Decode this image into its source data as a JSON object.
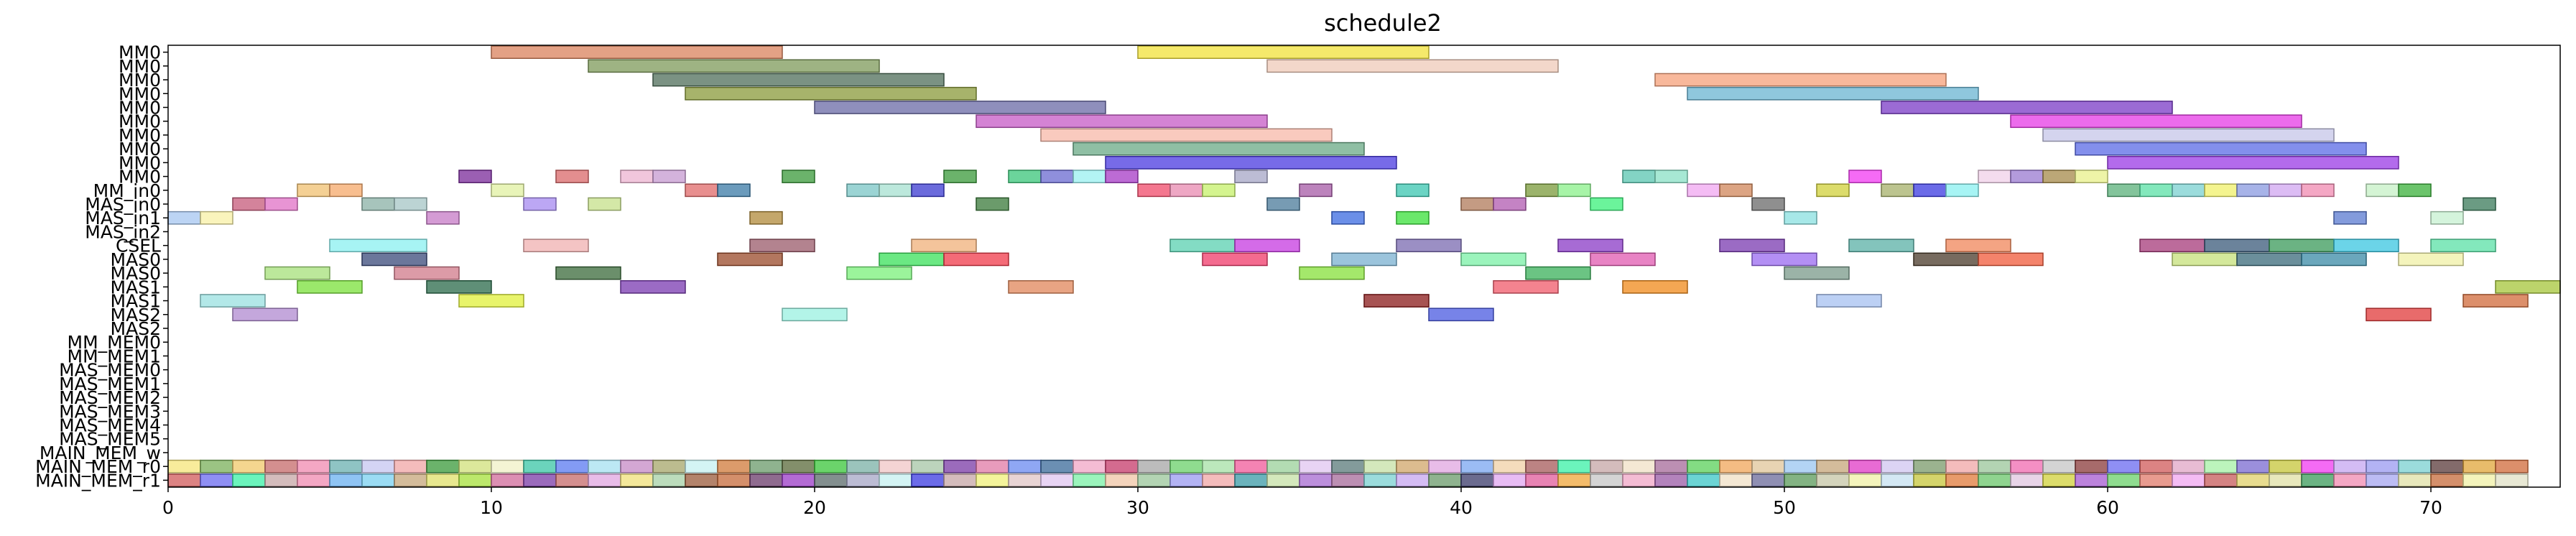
{
  "chart_data": {
    "type": "gantt",
    "title": "schedule2",
    "xlabel": "",
    "ylabel": "",
    "xlim": [
      0,
      74
    ],
    "xticks": [
      0,
      10,
      20,
      30,
      40,
      50,
      60,
      70
    ],
    "grid": false,
    "rows": [
      "MM0",
      "MM0",
      "MM0",
      "MM0",
      "MM0",
      "MM0",
      "MM0",
      "MM0",
      "MM0",
      "MM0",
      "MM_in0",
      "MAS_in0",
      "MAS_in1",
      "MAS_in2",
      "CSEL",
      "MAS0",
      "MAS0",
      "MAS1",
      "MAS1",
      "MAS2",
      "MAS2",
      "MM_MEM0",
      "MM_MEM1",
      "MAS_MEM0",
      "MAS_MEM1",
      "MAS_MEM2",
      "MAS_MEM3",
      "MAS_MEM4",
      "MAS_MEM5",
      "MAIN_MEM_w",
      "MAIN_MEM_r0",
      "MAIN_MEM_r1"
    ],
    "bars": [
      {
        "row": 0,
        "start": 10,
        "end": 19,
        "color": "#d9825c"
      },
      {
        "row": 0,
        "start": 30,
        "end": 39,
        "color": "#f2e23a"
      },
      {
        "row": 1,
        "start": 13,
        "end": 22,
        "color": "#7d9a5a"
      },
      {
        "row": 1,
        "start": 34,
        "end": 43,
        "color": "#efc9b8"
      },
      {
        "row": 2,
        "start": 15,
        "end": 24,
        "color": "#4f6e5a"
      },
      {
        "row": 2,
        "start": 46,
        "end": 55,
        "color": "#f5a07a"
      },
      {
        "row": 3,
        "start": 16,
        "end": 25,
        "color": "#8a9a3a"
      },
      {
        "row": 3,
        "start": 47,
        "end": 56,
        "color": "#6ab4d2"
      },
      {
        "row": 4,
        "start": 20,
        "end": 29,
        "color": "#6a6aa6"
      },
      {
        "row": 4,
        "start": 53,
        "end": 62,
        "color": "#7a3ac6"
      },
      {
        "row": 5,
        "start": 25,
        "end": 34,
        "color": "#c65ac6"
      },
      {
        "row": 5,
        "start": 57,
        "end": 66,
        "color": "#e53ae5"
      },
      {
        "row": 6,
        "start": 27,
        "end": 36,
        "color": "#f7b8a8"
      },
      {
        "row": 6,
        "start": 58,
        "end": 67,
        "color": "#c6c6e8"
      },
      {
        "row": 7,
        "start": 28,
        "end": 37,
        "color": "#6aaa86"
      },
      {
        "row": 7,
        "start": 59,
        "end": 68,
        "color": "#5a6ae6"
      },
      {
        "row": 8,
        "start": 29,
        "end": 38,
        "color": "#4a3ae0"
      },
      {
        "row": 8,
        "start": 60,
        "end": 69,
        "color": "#9a3ae6"
      },
      {
        "row": 9,
        "start": 9,
        "end": 10,
        "color": "#7a2a9a"
      },
      {
        "row": 9,
        "start": 12,
        "end": 13,
        "color": "#d9686a"
      },
      {
        "row": 9,
        "start": 14,
        "end": 15,
        "color": "#ecb3d0"
      },
      {
        "row": 9,
        "start": 15,
        "end": 16,
        "color": "#c69ad0"
      },
      {
        "row": 9,
        "start": 19,
        "end": 20,
        "color": "#3a9a3a"
      },
      {
        "row": 9,
        "start": 24,
        "end": 25,
        "color": "#3a9a3a"
      },
      {
        "row": 9,
        "start": 26,
        "end": 27,
        "color": "#3ac67a"
      },
      {
        "row": 9,
        "start": 27,
        "end": 28,
        "color": "#6a6ad0"
      },
      {
        "row": 9,
        "start": 28,
        "end": 29,
        "color": "#9af0f0"
      },
      {
        "row": 9,
        "start": 29,
        "end": 30,
        "color": "#a63ac6"
      },
      {
        "row": 9,
        "start": 33,
        "end": 34,
        "color": "#a6a6c6"
      },
      {
        "row": 9,
        "start": 45,
        "end": 46,
        "color": "#5ac6b0"
      },
      {
        "row": 9,
        "start": 46,
        "end": 47,
        "color": "#8ae0c6"
      },
      {
        "row": 9,
        "start": 52,
        "end": 53,
        "color": "#f23af2"
      },
      {
        "row": 9,
        "start": 56,
        "end": 57,
        "color": "#f0d0e8"
      },
      {
        "row": 9,
        "start": 57,
        "end": 58,
        "color": "#9a7ad0"
      },
      {
        "row": 9,
        "start": 58,
        "end": 59,
        "color": "#a68a4a"
      },
      {
        "row": 9,
        "start": 59,
        "end": 60,
        "color": "#e8f08a"
      },
      {
        "row": 10,
        "start": 4,
        "end": 5,
        "color": "#f0c070"
      },
      {
        "row": 10,
        "start": 5,
        "end": 6,
        "color": "#f5a86a"
      },
      {
        "row": 10,
        "start": 10,
        "end": 11,
        "color": "#e0f0a0"
      },
      {
        "row": 10,
        "start": 16,
        "end": 17,
        "color": "#e06a6a"
      },
      {
        "row": 10,
        "start": 17,
        "end": 18,
        "color": "#3a7aa6"
      },
      {
        "row": 10,
        "start": 21,
        "end": 22,
        "color": "#7ac6c6"
      },
      {
        "row": 10,
        "start": 22,
        "end": 23,
        "color": "#a6e0d0"
      },
      {
        "row": 10,
        "start": 23,
        "end": 24,
        "color": "#3a3ad0"
      },
      {
        "row": 10,
        "start": 30,
        "end": 31,
        "color": "#f04a6a"
      },
      {
        "row": 10,
        "start": 31,
        "end": 32,
        "color": "#e88ab0"
      },
      {
        "row": 10,
        "start": 32,
        "end": 33,
        "color": "#c6f06a"
      },
      {
        "row": 10,
        "start": 35,
        "end": 36,
        "color": "#a65aa6"
      },
      {
        "row": 10,
        "start": 38,
        "end": 39,
        "color": "#3ac6b0"
      },
      {
        "row": 10,
        "start": 42,
        "end": 43,
        "color": "#7a9a3a"
      },
      {
        "row": 10,
        "start": 43,
        "end": 44,
        "color": "#8af08a"
      },
      {
        "row": 10,
        "start": 47,
        "end": 48,
        "color": "#f0a6f0"
      },
      {
        "row": 10,
        "start": 48,
        "end": 49,
        "color": "#d0865a"
      },
      {
        "row": 10,
        "start": 51,
        "end": 52,
        "color": "#d0d03a"
      },
      {
        "row": 10,
        "start": 53,
        "end": 54,
        "color": "#a6b06a"
      },
      {
        "row": 10,
        "start": 54,
        "end": 55,
        "color": "#3a3ae0"
      },
      {
        "row": 10,
        "start": 55,
        "end": 56,
        "color": "#8af0f0"
      },
      {
        "row": 10,
        "start": 60,
        "end": 61,
        "color": "#5ab07a"
      },
      {
        "row": 10,
        "start": 61,
        "end": 62,
        "color": "#5ae0a6"
      },
      {
        "row": 10,
        "start": 62,
        "end": 63,
        "color": "#7ad0d0"
      },
      {
        "row": 10,
        "start": 63,
        "end": 64,
        "color": "#f0f06a"
      },
      {
        "row": 10,
        "start": 64,
        "end": 65,
        "color": "#8a9ae0"
      },
      {
        "row": 10,
        "start": 65,
        "end": 66,
        "color": "#d0a6f0"
      },
      {
        "row": 10,
        "start": 66,
        "end": 67,
        "color": "#f08ab0"
      },
      {
        "row": 10,
        "start": 68,
        "end": 69,
        "color": "#c6f0c6"
      },
      {
        "row": 10,
        "start": 69,
        "end": 70,
        "color": "#3ab03a"
      },
      {
        "row": 11,
        "start": 2,
        "end": 3,
        "color": "#c65a7a"
      },
      {
        "row": 11,
        "start": 3,
        "end": 4,
        "color": "#e070c6"
      },
      {
        "row": 11,
        "start": 6,
        "end": 7,
        "color": "#8ab0a6"
      },
      {
        "row": 11,
        "start": 7,
        "end": 8,
        "color": "#a6c6c6"
      },
      {
        "row": 11,
        "start": 11,
        "end": 12,
        "color": "#a68af0"
      },
      {
        "row": 11,
        "start": 13,
        "end": 14,
        "color": "#c6e08a"
      },
      {
        "row": 11,
        "start": 25,
        "end": 26,
        "color": "#3a7a3a"
      },
      {
        "row": 11,
        "start": 34,
        "end": 35,
        "color": "#4a7a9a"
      },
      {
        "row": 11,
        "start": 40,
        "end": 41,
        "color": "#b07a5a"
      },
      {
        "row": 11,
        "start": 41,
        "end": 42,
        "color": "#b05ab0"
      },
      {
        "row": 11,
        "start": 44,
        "end": 45,
        "color": "#3af07a"
      },
      {
        "row": 11,
        "start": 49,
        "end": 50,
        "color": "#6a6a6a"
      },
      {
        "row": 11,
        "start": 71,
        "end": 72,
        "color": "#3a7a5a"
      },
      {
        "row": 12,
        "start": 0,
        "end": 1,
        "color": "#a6c6f0"
      },
      {
        "row": 12,
        "start": 1,
        "end": 2,
        "color": "#f8f0a6"
      },
      {
        "row": 12,
        "start": 8,
        "end": 9,
        "color": "#c67ac6"
      },
      {
        "row": 12,
        "start": 18,
        "end": 19,
        "color": "#b08a3a"
      },
      {
        "row": 12,
        "start": 36,
        "end": 37,
        "color": "#3a6ae0"
      },
      {
        "row": 12,
        "start": 38,
        "end": 39,
        "color": "#3ae03a"
      },
      {
        "row": 12,
        "start": 50,
        "end": 51,
        "color": "#8ae0e0"
      },
      {
        "row": 12,
        "start": 67,
        "end": 68,
        "color": "#5a7ad0"
      },
      {
        "row": 12,
        "start": 70,
        "end": 71,
        "color": "#c6f0d0"
      },
      {
        "row": 14,
        "start": 5,
        "end": 8,
        "color": "#8af0f0"
      },
      {
        "row": 14,
        "start": 11,
        "end": 13,
        "color": "#f0b0b0"
      },
      {
        "row": 14,
        "start": 18,
        "end": 20,
        "color": "#9a5a6a"
      },
      {
        "row": 14,
        "start": 23,
        "end": 25,
        "color": "#f0b07a"
      },
      {
        "row": 14,
        "start": 31,
        "end": 33,
        "color": "#5ad0b0"
      },
      {
        "row": 14,
        "start": 33,
        "end": 35,
        "color": "#c63ae0"
      },
      {
        "row": 14,
        "start": 38,
        "end": 40,
        "color": "#7a6ab0"
      },
      {
        "row": 14,
        "start": 43,
        "end": 45,
        "color": "#8a3ac6"
      },
      {
        "row": 14,
        "start": 48,
        "end": 50,
        "color": "#7a3ab0"
      },
      {
        "row": 14,
        "start": 52,
        "end": 54,
        "color": "#5ab0a6"
      },
      {
        "row": 14,
        "start": 55,
        "end": 57,
        "color": "#f0865a"
      },
      {
        "row": 14,
        "start": 61,
        "end": 63,
        "color": "#a63a7a"
      },
      {
        "row": 14,
        "start": 63,
        "end": 65,
        "color": "#3a5a7a"
      },
      {
        "row": 14,
        "start": 65,
        "end": 67,
        "color": "#3a9a5a"
      },
      {
        "row": 14,
        "start": 67,
        "end": 69,
        "color": "#3ac6e0"
      },
      {
        "row": 14,
        "start": 70,
        "end": 72,
        "color": "#5ae0a6"
      },
      {
        "row": 15,
        "start": 6,
        "end": 8,
        "color": "#3a4a7a"
      },
      {
        "row": 15,
        "start": 17,
        "end": 19,
        "color": "#9a4a2a"
      },
      {
        "row": 15,
        "start": 22,
        "end": 24,
        "color": "#3ae05a"
      },
      {
        "row": 15,
        "start": 24,
        "end": 26,
        "color": "#f03a4a"
      },
      {
        "row": 15,
        "start": 32,
        "end": 34,
        "color": "#f03a6a"
      },
      {
        "row": 15,
        "start": 36,
        "end": 38,
        "color": "#7ab0d0"
      },
      {
        "row": 15,
        "start": 40,
        "end": 42,
        "color": "#7af0a6"
      },
      {
        "row": 15,
        "start": 44,
        "end": 46,
        "color": "#e05ab0"
      },
      {
        "row": 15,
        "start": 49,
        "end": 51,
        "color": "#9a6af0"
      },
      {
        "row": 15,
        "start": 54,
        "end": 56,
        "color": "#4a3a2a"
      },
      {
        "row": 15,
        "start": 56,
        "end": 58,
        "color": "#f05a3a"
      },
      {
        "row": 15,
        "start": 62,
        "end": 64,
        "color": "#c6e07a"
      },
      {
        "row": 15,
        "start": 64,
        "end": 66,
        "color": "#3a6a7a"
      },
      {
        "row": 15,
        "start": 66,
        "end": 68,
        "color": "#3a8aa6"
      },
      {
        "row": 15,
        "start": 69,
        "end": 71,
        "color": "#f0f0a6"
      },
      {
        "row": 16,
        "start": 3,
        "end": 5,
        "color": "#a6e07a"
      },
      {
        "row": 16,
        "start": 7,
        "end": 9,
        "color": "#d07a8a"
      },
      {
        "row": 16,
        "start": 12,
        "end": 14,
        "color": "#3a6a3a"
      },
      {
        "row": 16,
        "start": 21,
        "end": 23,
        "color": "#7af07a"
      },
      {
        "row": 16,
        "start": 35,
        "end": 37,
        "color": "#86e03a"
      },
      {
        "row": 16,
        "start": 42,
        "end": 44,
        "color": "#3ab05a"
      },
      {
        "row": 16,
        "start": 50,
        "end": 52,
        "color": "#7a9a8a"
      },
      {
        "row": 17,
        "start": 4,
        "end": 6,
        "color": "#7ae03a"
      },
      {
        "row": 17,
        "start": 8,
        "end": 10,
        "color": "#2a6a4a"
      },
      {
        "row": 17,
        "start": 14,
        "end": 16,
        "color": "#7a3ab0"
      },
      {
        "row": 17,
        "start": 26,
        "end": 28,
        "color": "#e0865a"
      },
      {
        "row": 17,
        "start": 41,
        "end": 43,
        "color": "#f05a6a"
      },
      {
        "row": 17,
        "start": 45,
        "end": 47,
        "color": "#f08a1a"
      },
      {
        "row": 17,
        "start": 72,
        "end": 74,
        "color": "#a6c63a"
      },
      {
        "row": 18,
        "start": 1,
        "end": 3,
        "color": "#9ae0e0"
      },
      {
        "row": 18,
        "start": 9,
        "end": 11,
        "color": "#e0f03a"
      },
      {
        "row": 18,
        "start": 37,
        "end": 39,
        "color": "#8a1a1a"
      },
      {
        "row": 18,
        "start": 51,
        "end": 53,
        "color": "#a6c0f0"
      },
      {
        "row": 18,
        "start": 71,
        "end": 73,
        "color": "#d06a3a"
      },
      {
        "row": 19,
        "start": 2,
        "end": 4,
        "color": "#b08ad0"
      },
      {
        "row": 19,
        "start": 19,
        "end": 21,
        "color": "#9af0e0"
      },
      {
        "row": 19,
        "start": 39,
        "end": 41,
        "color": "#4a5ae0"
      },
      {
        "row": 19,
        "start": 68,
        "end": 70,
        "color": "#e03a3a"
      }
    ],
    "memory_strips": {
      "MAIN_MEM_r0": [
        "#f5e67a",
        "#7ab05a",
        "#f0c86a",
        "#c66a6a",
        "#f08ab0",
        "#6ab0b0",
        "#c6c6f0",
        "#f0a6a6",
        "#3a9a3a",
        "#d0e07a",
        "#f0f0c6",
        "#3ac6a6",
        "#5a7af0",
        "#a6e0f0",
        "#c68ac6",
        "#a6a66a",
        "#c6f0f0",
        "#d07a3a",
        "#6a9a6a",
        "#5a6a3a",
        "#3ac63a",
        "#7ab0a6",
        "#f0c6c6",
        "#a6c6a6",
        "#7a3aa6",
        "#e07aa6",
        "#6a8af0",
        "#3a6a9a",
        "#f0a6c6",
        "#c63a6a",
        "#a6a6a6",
        "#6ad06a",
        "#a6e0a6",
        "#f05a9a",
        "#9ad09a",
        "#e0c6f0",
        "#5a7a7a",
        "#c6e0a6",
        "#d0a66a",
        "#e0a6e0",
        "#7aa6f0",
        "#f0d0a6",
        "#a65a5a",
        "#3af0a6",
        "#c6a6a6",
        "#f0e0c6",
        "#a66a9a",
        "#5ad05a",
        "#f0a65a",
        "#e0c69a",
        "#9ac6f0",
        "#c6a67a",
        "#e03ac6",
        "#d0c6f0",
        "#7a9a6a",
        "#f0a6a6",
        "#9ac69a",
        "#f06ab0",
        "#c6c6c6",
        "#8a3a3a",
        "#6a6af0",
        "#d05a5a",
        "#e0a6c6",
        "#a6f0a6",
        "#7a6ad0",
        "#c6c63a",
        "#f03af0",
        "#c6a6f0",
        "#9a9af0",
        "#7ad0d0",
        "#5a3a3a",
        "#e0a63a",
        "#d06a3a"
      ],
      "MAIN_MEM_r1": [
        "#d05a5a",
        "#6a6af0",
        "#3af0a6",
        "#c6a6a6",
        "#f08ab0",
        "#6ab0f0",
        "#7ad0f0",
        "#c6a67a",
        "#e0e06a",
        "#a6e03a",
        "#d06a9a",
        "#7a3aa6",
        "#c66a6a",
        "#e0a6e0",
        "#f0e07a",
        "#a6d0a6",
        "#9a5a3a",
        "#c66a3a",
        "#6a3a6a",
        "#9a3ac6",
        "#5a6a6a",
        "#a6a6c6",
        "#c6f0f0",
        "#3a3ae0",
        "#c6a6a6",
        "#f0f07a",
        "#e0c6c6",
        "#e0c6f0",
        "#7af0a6",
        "#f0c6a6",
        "#9ac69a",
        "#9a9af0",
        "#f0a6a6",
        "#3a9aa6",
        "#c6e0a6",
        "#a66ad0",
        "#a66a9a",
        "#7ad0d0",
        "#c6a6f0",
        "#6a9a6a",
        "#3a3a6a",
        "#e0a6f0",
        "#e05a9a",
        "#f0a63a",
        "#c6c6c6",
        "#f0a6c6",
        "#9a5aa6",
        "#3ac6c6",
        "#f0e0c6",
        "#6a6a9a",
        "#5a9a5a",
        "#c6c6a6",
        "#f0f0a6",
        "#c6e0f0",
        "#c6c63a",
        "#e07a3a",
        "#6ac66a",
        "#e0c6e0",
        "#d0d03a",
        "#a65ad0",
        "#6ad06a",
        "#e07a6a",
        "#f0a6f0",
        "#c65a5a",
        "#e0d06a",
        "#e0e0a6",
        "#3a9a5a",
        "#f08ab0",
        "#a6a6f0",
        "#e0e0a6",
        "#c66a3a",
        "#f0f0a6",
        "#e0e0c6"
      ]
    }
  }
}
